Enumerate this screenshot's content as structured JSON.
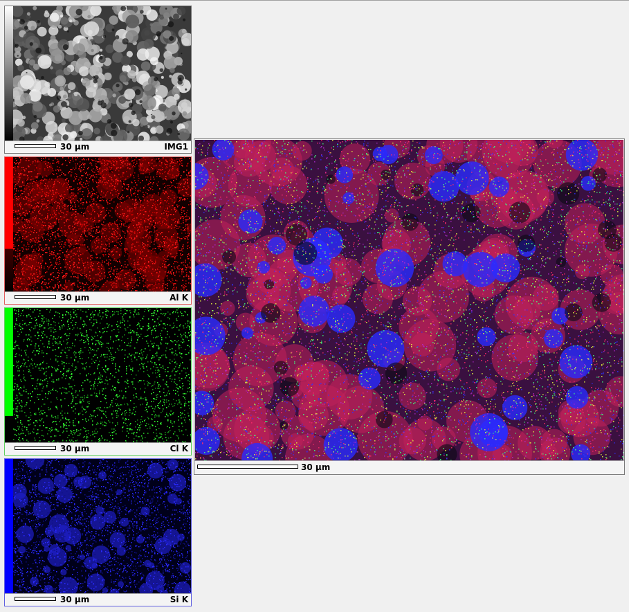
{
  "panels": [
    {
      "id": "img1",
      "element_label": "IMG1",
      "scale_label": "30 µm",
      "color": "#c8c8c8",
      "bar_color": "gradient-gray",
      "border_color": "#7a7a7a"
    },
    {
      "id": "alk",
      "element_label": "Al K",
      "scale_label": "30 µm",
      "color": "#ff1a1a",
      "bar_color": "#ff0000",
      "border_color": "#e06060"
    },
    {
      "id": "clk",
      "element_label": "Cl K",
      "scale_label": "30 µm",
      "color": "#33ff33",
      "bar_color": "#00ff00",
      "border_color": "#60d060"
    },
    {
      "id": "sik",
      "element_label": "Si K",
      "scale_label": "30 µm",
      "color": "#2a2aff",
      "bar_color": "#0000ff",
      "border_color": "#6060e0"
    }
  ],
  "overlay": {
    "scale_label": "30 µm",
    "colors": [
      "#ff2a6a",
      "#3030ff",
      "#b02ad0",
      "#e8ff40",
      "#40ff80"
    ]
  }
}
